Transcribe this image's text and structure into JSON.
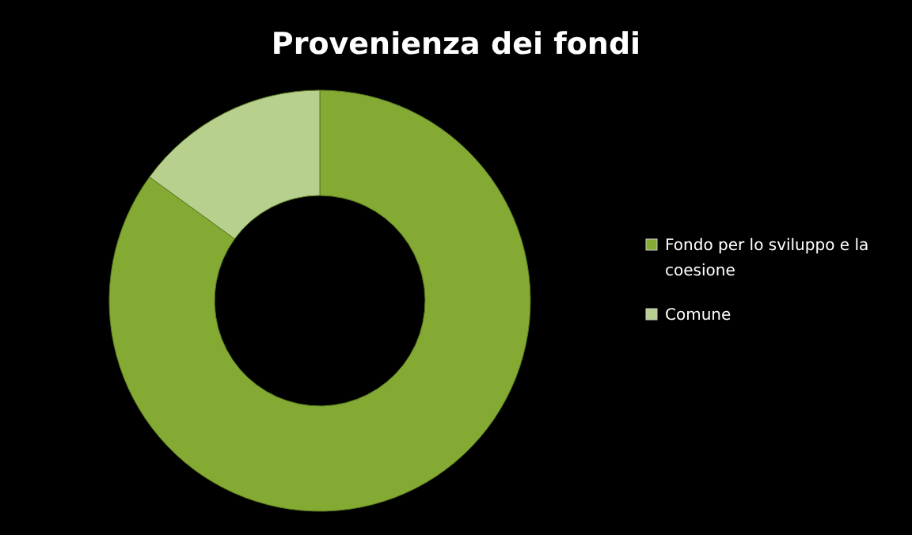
{
  "chart_data": {
    "type": "donut",
    "title": "Provenienza dei fondi",
    "categories": [
      "Fondo per lo sviluppo e la coesione",
      "Comune"
    ],
    "values": [
      85,
      15
    ],
    "colors": [
      "#84aa34",
      "#b8d08e"
    ],
    "legend": "right"
  }
}
